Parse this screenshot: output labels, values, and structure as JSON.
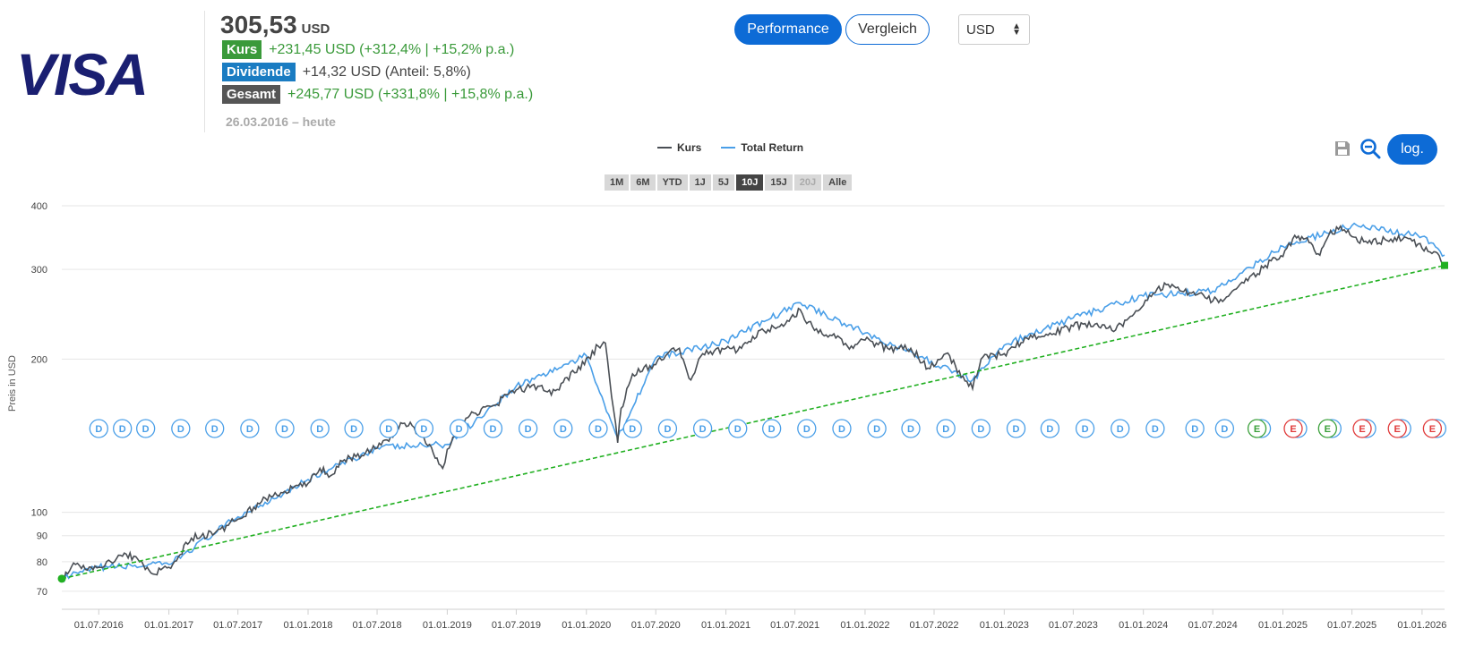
{
  "header": {
    "price": "305,53",
    "price_currency": "USD",
    "stats": [
      {
        "badge": "Kurs",
        "badge_color": "#3a9a3a",
        "value": "+231,45 USD (+312,4% | +15,2% p.a.)",
        "value_style": "green"
      },
      {
        "badge": "Dividende",
        "badge_color": "#1a7cc2",
        "value": "+14,32 USD (Anteil: 5,8%)",
        "value_style": "dark"
      },
      {
        "badge": "Gesamt",
        "badge_color": "#555555",
        "value": "+245,77 USD (+331,8% | +15,8% p.a.)",
        "value_style": "green"
      }
    ],
    "period": "26.03.2016 – heute"
  },
  "controls": {
    "performance_label": "Performance",
    "vergleich_label": "Vergleich",
    "currency_selected": "USD",
    "log_label": "log.",
    "save_icon": "save-icon",
    "zoom_icon": "zoom-out-icon"
  },
  "legend": [
    {
      "label": "Kurs",
      "color": "#4a4f55"
    },
    {
      "label": "Total Return",
      "color": "#4a9fe8"
    }
  ],
  "ranges": [
    {
      "label": "1M",
      "state": "normal"
    },
    {
      "label": "6M",
      "state": "normal"
    },
    {
      "label": "YTD",
      "state": "normal"
    },
    {
      "label": "1J",
      "state": "normal"
    },
    {
      "label": "5J",
      "state": "normal"
    },
    {
      "label": "10J",
      "state": "active"
    },
    {
      "label": "15J",
      "state": "normal"
    },
    {
      "label": "20J",
      "state": "disabled"
    },
    {
      "label": "Alle",
      "state": "normal"
    }
  ],
  "colors": {
    "accent": "#0d6bd6",
    "trend": "#22b022",
    "dividend_marker": "#4a9fe8",
    "earnings_green": "#3aa03a",
    "earnings_red": "#e03a3a"
  },
  "chart_data": {
    "type": "line",
    "ylabel": "Preis in USD",
    "y_scale": "log",
    "ylim": [
      68,
      420
    ],
    "y_ticks": [
      70,
      80,
      90,
      100,
      200,
      300,
      400
    ],
    "x_range": [
      "2016-03-26",
      "2026-03-01"
    ],
    "x_ticks": [
      "01.07.2016",
      "01.01.2017",
      "01.07.2017",
      "01.01.2018",
      "01.07.2018",
      "01.01.2019",
      "01.07.2019",
      "01.01.2020",
      "01.07.2020",
      "01.01.2021",
      "01.07.2021",
      "01.01.2022",
      "01.07.2022",
      "01.01.2023",
      "01.07.2023",
      "01.01.2024",
      "01.07.2024",
      "01.01.2025",
      "01.07.2025",
      "01.01.2026"
    ],
    "series": [
      {
        "name": "Kurs",
        "color": "#4a4f55",
        "points": [
          [
            "2016-03-26",
            74
          ],
          [
            "2016-05-01",
            79
          ],
          [
            "2016-06-01",
            77
          ],
          [
            "2016-07-01",
            78
          ],
          [
            "2016-08-01",
            80
          ],
          [
            "2016-09-01",
            82
          ],
          [
            "2016-10-01",
            82
          ],
          [
            "2016-11-15",
            76
          ],
          [
            "2017-01-01",
            78
          ],
          [
            "2017-03-01",
            89
          ],
          [
            "2017-05-01",
            91
          ],
          [
            "2017-07-01",
            97
          ],
          [
            "2017-09-01",
            105
          ],
          [
            "2017-11-01",
            110
          ],
          [
            "2018-01-01",
            114
          ],
          [
            "2018-02-01",
            122
          ],
          [
            "2018-03-01",
            118
          ],
          [
            "2018-04-01",
            126
          ],
          [
            "2018-06-01",
            131
          ],
          [
            "2018-08-01",
            138
          ],
          [
            "2018-09-01",
            150
          ],
          [
            "2018-10-01",
            148
          ],
          [
            "2018-11-01",
            140
          ],
          [
            "2018-12-20",
            122
          ],
          [
            "2019-01-01",
            133
          ],
          [
            "2019-03-01",
            155
          ],
          [
            "2019-05-01",
            162
          ],
          [
            "2019-07-01",
            174
          ],
          [
            "2019-09-01",
            177
          ],
          [
            "2019-10-01",
            170
          ],
          [
            "2019-11-01",
            180
          ],
          [
            "2019-12-01",
            188
          ],
          [
            "2020-02-01",
            212
          ],
          [
            "2020-02-20",
            215
          ],
          [
            "2020-03-23",
            137
          ],
          [
            "2020-04-01",
            160
          ],
          [
            "2020-05-01",
            187
          ],
          [
            "2020-07-01",
            195
          ],
          [
            "2020-08-01",
            205
          ],
          [
            "2020-09-01",
            210
          ],
          [
            "2020-10-01",
            182
          ],
          [
            "2020-11-01",
            205
          ],
          [
            "2021-01-01",
            210
          ],
          [
            "2021-02-01",
            208
          ],
          [
            "2021-04-01",
            228
          ],
          [
            "2021-06-01",
            232
          ],
          [
            "2021-07-15",
            250
          ],
          [
            "2021-08-01",
            235
          ],
          [
            "2021-10-01",
            223
          ],
          [
            "2021-12-01",
            210
          ],
          [
            "2022-01-01",
            218
          ],
          [
            "2022-03-01",
            210
          ],
          [
            "2022-05-01",
            210
          ],
          [
            "2022-06-15",
            192
          ],
          [
            "2022-08-01",
            205
          ],
          [
            "2022-09-15",
            185
          ],
          [
            "2022-10-10",
            175
          ],
          [
            "2022-11-01",
            200
          ],
          [
            "2023-01-01",
            205
          ],
          [
            "2023-03-01",
            220
          ],
          [
            "2023-05-01",
            225
          ],
          [
            "2023-07-01",
            232
          ],
          [
            "2023-09-01",
            235
          ],
          [
            "2023-10-20",
            228
          ],
          [
            "2024-01-01",
            255
          ],
          [
            "2024-02-01",
            270
          ],
          [
            "2024-03-01",
            280
          ],
          [
            "2024-05-01",
            270
          ],
          [
            "2024-06-01",
            270
          ],
          [
            "2024-07-01",
            260
          ],
          [
            "2024-08-01",
            262
          ],
          [
            "2024-10-01",
            285
          ],
          [
            "2024-12-01",
            312
          ],
          [
            "2025-01-01",
            318
          ],
          [
            "2025-02-01",
            350
          ],
          [
            "2025-03-01",
            345
          ],
          [
            "2025-04-08",
            320
          ],
          [
            "2025-05-01",
            350
          ],
          [
            "2025-06-01",
            365
          ],
          [
            "2025-07-01",
            348
          ],
          [
            "2025-08-01",
            340
          ],
          [
            "2025-10-01",
            342
          ],
          [
            "2025-12-01",
            345
          ],
          [
            "2026-01-01",
            330
          ],
          [
            "2026-02-01",
            325
          ],
          [
            "2026-03-01",
            305.53
          ]
        ]
      },
      {
        "name": "Total Return",
        "color": "#4a9fe8",
        "points": [
          [
            "2016-03-26",
            74
          ],
          [
            "2016-07-01",
            78
          ],
          [
            "2017-01-01",
            79
          ],
          [
            "2017-07-01",
            98
          ],
          [
            "2018-01-01",
            116
          ],
          [
            "2018-07-01",
            134
          ],
          [
            "2019-01-01",
            136
          ],
          [
            "2019-07-01",
            177
          ],
          [
            "2020-01-01",
            203
          ],
          [
            "2020-03-23",
            140
          ],
          [
            "2020-07-01",
            201
          ],
          [
            "2021-01-01",
            217
          ],
          [
            "2021-07-15",
            258
          ],
          [
            "2022-01-01",
            225
          ],
          [
            "2022-10-10",
            182
          ],
          [
            "2023-01-01",
            213
          ],
          [
            "2023-07-01",
            241
          ],
          [
            "2024-01-01",
            266
          ],
          [
            "2024-07-01",
            272
          ],
          [
            "2025-01-01",
            333
          ],
          [
            "2025-07-01",
            366
          ],
          [
            "2026-01-01",
            348
          ],
          [
            "2026-03-01",
            320.2
          ]
        ]
      }
    ],
    "trendline": {
      "start": [
        "2016-03-26",
        74.08
      ],
      "end": [
        "2026-03-01",
        305.53
      ]
    },
    "event_markers": [
      {
        "x": "2016-07-01",
        "label": "D",
        "kind": "dividend"
      },
      {
        "x": "2016-09-01",
        "label": "D",
        "kind": "dividend"
      },
      {
        "x": "2016-11-01",
        "label": "D",
        "kind": "dividend"
      },
      {
        "x": "2017-02-01",
        "label": "D",
        "kind": "dividend"
      },
      {
        "x": "2017-05-01",
        "label": "D",
        "kind": "dividend"
      },
      {
        "x": "2017-08-01",
        "label": "D",
        "kind": "dividend"
      },
      {
        "x": "2017-11-01",
        "label": "D",
        "kind": "dividend"
      },
      {
        "x": "2018-02-01",
        "label": "D",
        "kind": "dividend"
      },
      {
        "x": "2018-05-01",
        "label": "D",
        "kind": "dividend"
      },
      {
        "x": "2018-08-01",
        "label": "D",
        "kind": "dividend"
      },
      {
        "x": "2018-11-01",
        "label": "D",
        "kind": "dividend"
      },
      {
        "x": "2019-02-01",
        "label": "D",
        "kind": "dividend"
      },
      {
        "x": "2019-05-01",
        "label": "D",
        "kind": "dividend"
      },
      {
        "x": "2019-08-01",
        "label": "D",
        "kind": "dividend"
      },
      {
        "x": "2019-11-01",
        "label": "D",
        "kind": "dividend"
      },
      {
        "x": "2020-02-01",
        "label": "D",
        "kind": "dividend"
      },
      {
        "x": "2020-05-01",
        "label": "D",
        "kind": "dividend"
      },
      {
        "x": "2020-08-01",
        "label": "D",
        "kind": "dividend"
      },
      {
        "x": "2020-11-01",
        "label": "D",
        "kind": "dividend"
      },
      {
        "x": "2021-02-01",
        "label": "D",
        "kind": "dividend"
      },
      {
        "x": "2021-05-01",
        "label": "D",
        "kind": "dividend"
      },
      {
        "x": "2021-08-01",
        "label": "D",
        "kind": "dividend"
      },
      {
        "x": "2021-11-01",
        "label": "D",
        "kind": "dividend"
      },
      {
        "x": "2022-02-01",
        "label": "D",
        "kind": "dividend"
      },
      {
        "x": "2022-05-01",
        "label": "D",
        "kind": "dividend"
      },
      {
        "x": "2022-08-01",
        "label": "D",
        "kind": "dividend"
      },
      {
        "x": "2022-11-01",
        "label": "D",
        "kind": "dividend"
      },
      {
        "x": "2023-02-01",
        "label": "D",
        "kind": "dividend"
      },
      {
        "x": "2023-05-01",
        "label": "D",
        "kind": "dividend"
      },
      {
        "x": "2023-08-01",
        "label": "D",
        "kind": "dividend"
      },
      {
        "x": "2023-11-01",
        "label": "D",
        "kind": "dividend"
      },
      {
        "x": "2024-02-01",
        "label": "D",
        "kind": "dividend"
      },
      {
        "x": "2024-05-15",
        "label": "D",
        "kind": "dividend"
      },
      {
        "x": "2024-08-01",
        "label": "D",
        "kind": "dividend"
      },
      {
        "x": "2024-10-25",
        "label": "E",
        "kind": "earnings-green"
      },
      {
        "x": "2025-01-28",
        "label": "E",
        "kind": "earnings-red"
      },
      {
        "x": "2025-04-28",
        "label": "E",
        "kind": "earnings-green"
      },
      {
        "x": "2025-07-28",
        "label": "E",
        "kind": "earnings-red"
      },
      {
        "x": "2025-10-28",
        "label": "E",
        "kind": "earnings-red"
      },
      {
        "x": "2026-01-28",
        "label": "E",
        "kind": "earnings-red"
      }
    ]
  }
}
